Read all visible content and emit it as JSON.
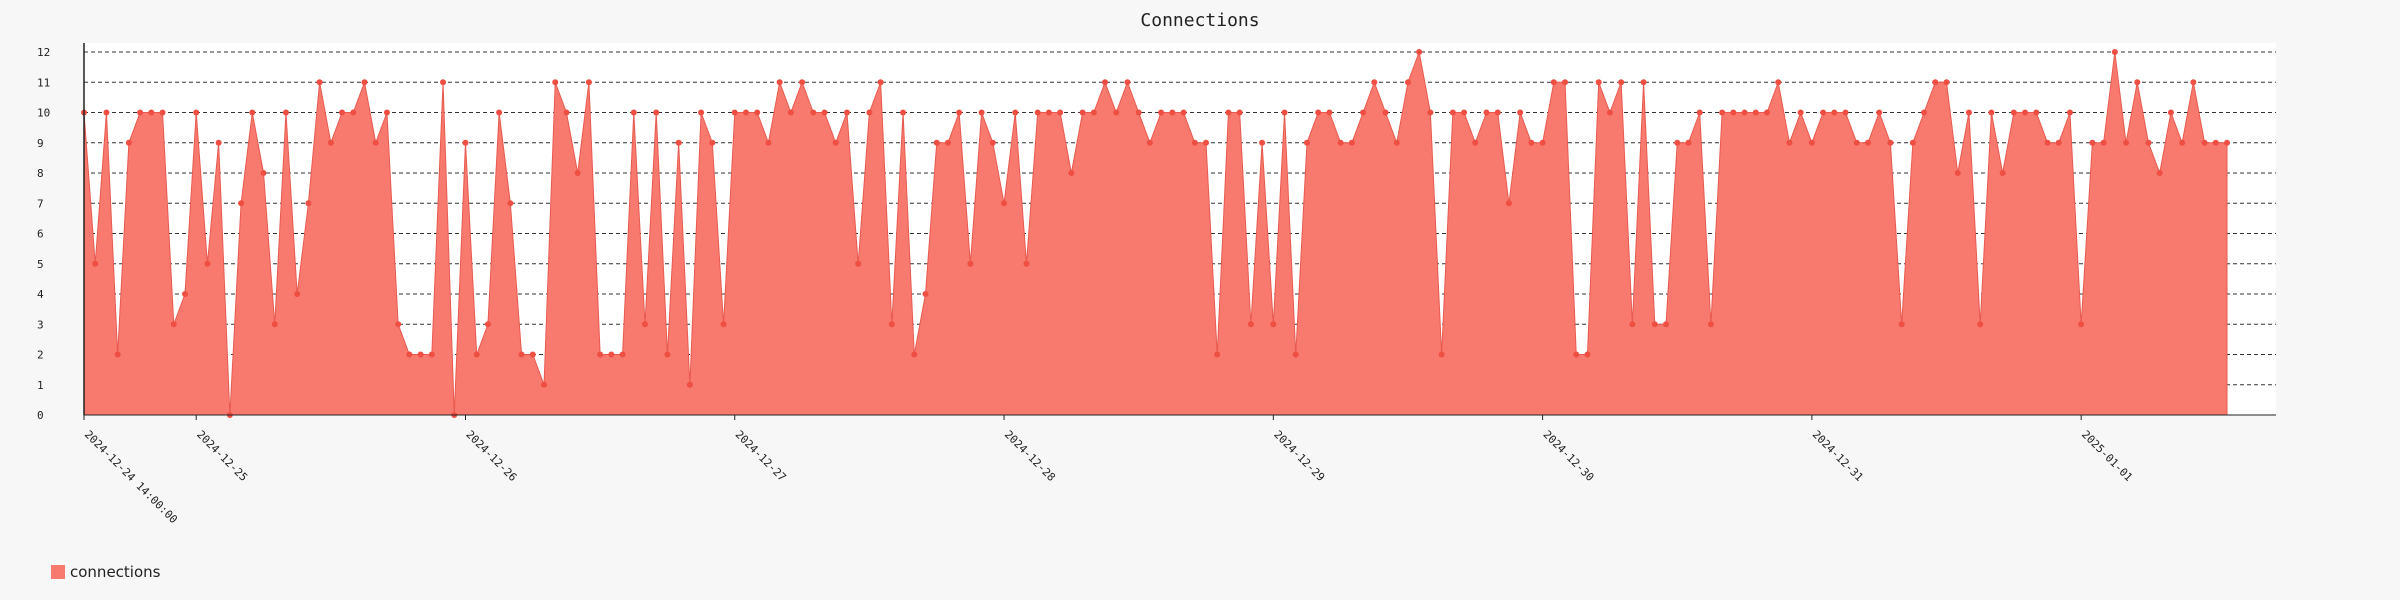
{
  "chart_data": {
    "type": "area",
    "title": "Connections",
    "xlabel": "",
    "ylabel": "",
    "ylim": [
      0,
      12
    ],
    "y_ticks": [
      0,
      1,
      2,
      3,
      4,
      5,
      6,
      7,
      8,
      9,
      10,
      11,
      12
    ],
    "grid": "horizontal dashed",
    "legend_position": "bottom-left",
    "colors": {
      "fill": "#f87a6e",
      "line": "#e85a4f",
      "marker": "#ef4e43",
      "grid": "#333333",
      "plot_bg": "#ffffff"
    },
    "x_start": "2024-12-24 14:00:00",
    "x_interval_hours": 1,
    "date_labels": [
      "2024-12-24 14:00:00",
      "2024-12-25",
      "2024-12-26",
      "2024-12-27",
      "2024-12-28",
      "2024-12-29",
      "2024-12-30",
      "2024-12-31",
      "2025-01-01"
    ],
    "series": [
      {
        "name": "connections",
        "values": [
          10,
          5,
          10,
          2,
          9,
          10,
          10,
          10,
          3,
          4,
          10,
          5,
          9,
          0,
          7,
          10,
          8,
          3,
          10,
          4,
          7,
          11,
          9,
          10,
          10,
          11,
          9,
          10,
          3,
          2,
          2,
          2,
          11,
          0,
          9,
          2,
          3,
          10,
          7,
          2,
          2,
          1,
          11,
          10,
          8,
          11,
          2,
          2,
          2,
          10,
          3,
          10,
          2,
          9,
          1,
          10,
          9,
          3,
          10,
          10,
          10,
          9,
          11,
          10,
          11,
          10,
          10,
          9,
          10,
          5,
          10,
          11,
          3,
          10,
          2,
          4,
          9,
          9,
          10,
          5,
          10,
          9,
          7,
          10,
          5,
          10,
          10,
          10,
          8,
          10,
          10,
          11,
          10,
          11,
          10,
          9,
          10,
          10,
          10,
          9,
          9,
          2,
          10,
          10,
          3,
          9,
          3,
          10,
          2,
          9,
          10,
          10,
          9,
          9,
          10,
          11,
          10,
          9,
          11,
          12,
          10,
          2,
          10,
          10,
          9,
          10,
          10,
          7,
          10,
          9,
          9,
          11,
          11,
          2,
          2,
          11,
          10,
          11,
          3,
          11,
          3,
          3,
          9,
          9,
          10,
          3,
          10,
          10,
          10,
          10,
          10,
          11,
          9,
          10,
          9,
          10,
          10,
          10,
          9,
          9,
          10,
          9,
          3,
          9,
          10,
          11,
          11,
          8,
          10,
          3,
          10,
          8,
          10,
          10,
          10,
          9,
          9,
          10,
          3,
          9,
          9,
          12,
          9,
          11,
          9,
          8,
          10,
          9,
          11,
          9,
          9,
          9
        ]
      }
    ]
  }
}
